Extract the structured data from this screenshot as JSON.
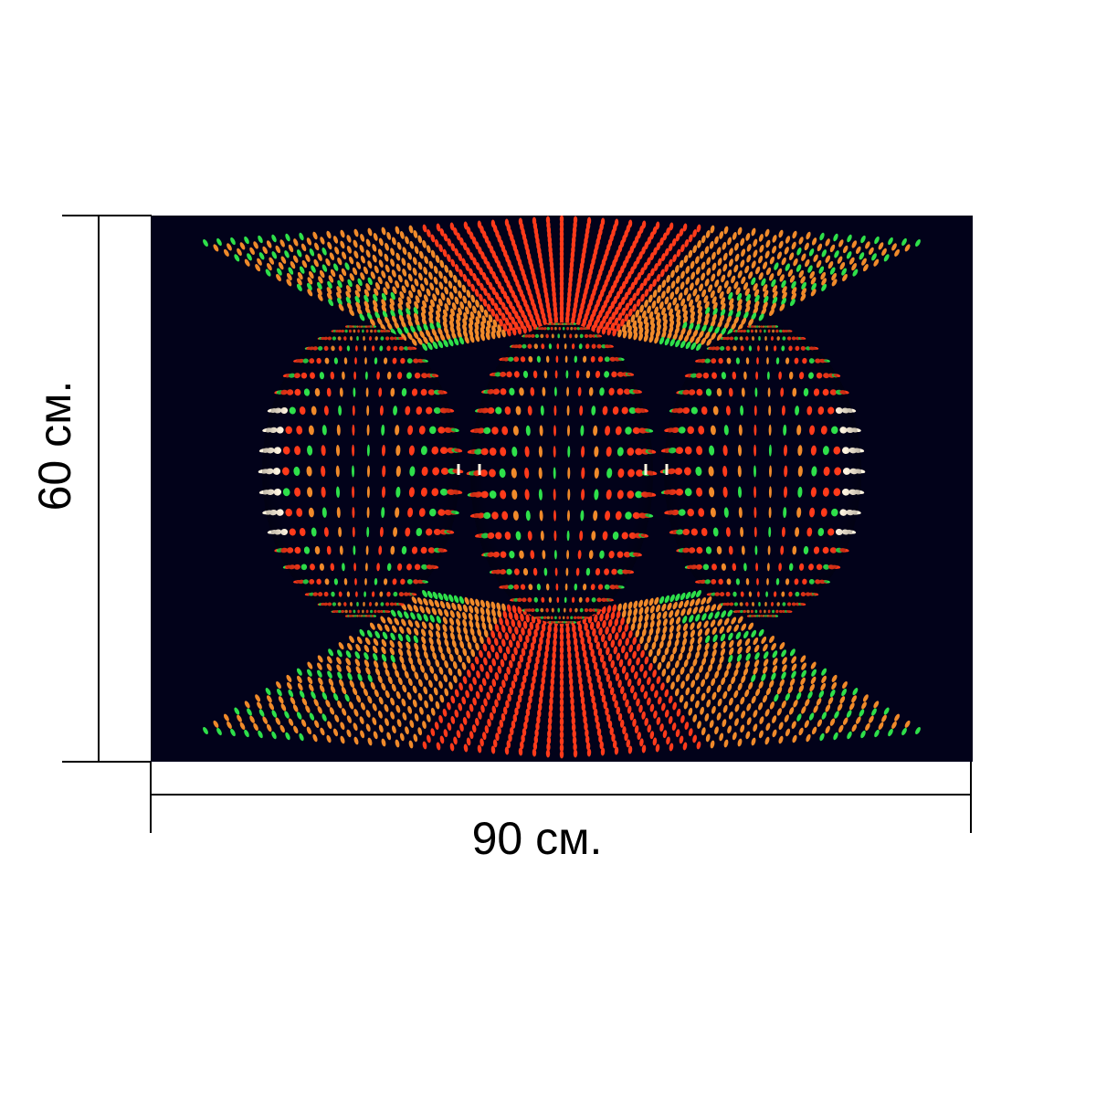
{
  "dimensions": {
    "height_label": "60 см.",
    "width_label": "90 см."
  },
  "artwork": {
    "description_colors": {
      "background": "#02021a",
      "red": "#ff3a1a",
      "orange": "#f08a2a",
      "green": "#2ee04a",
      "white": "#fff4e0"
    }
  }
}
